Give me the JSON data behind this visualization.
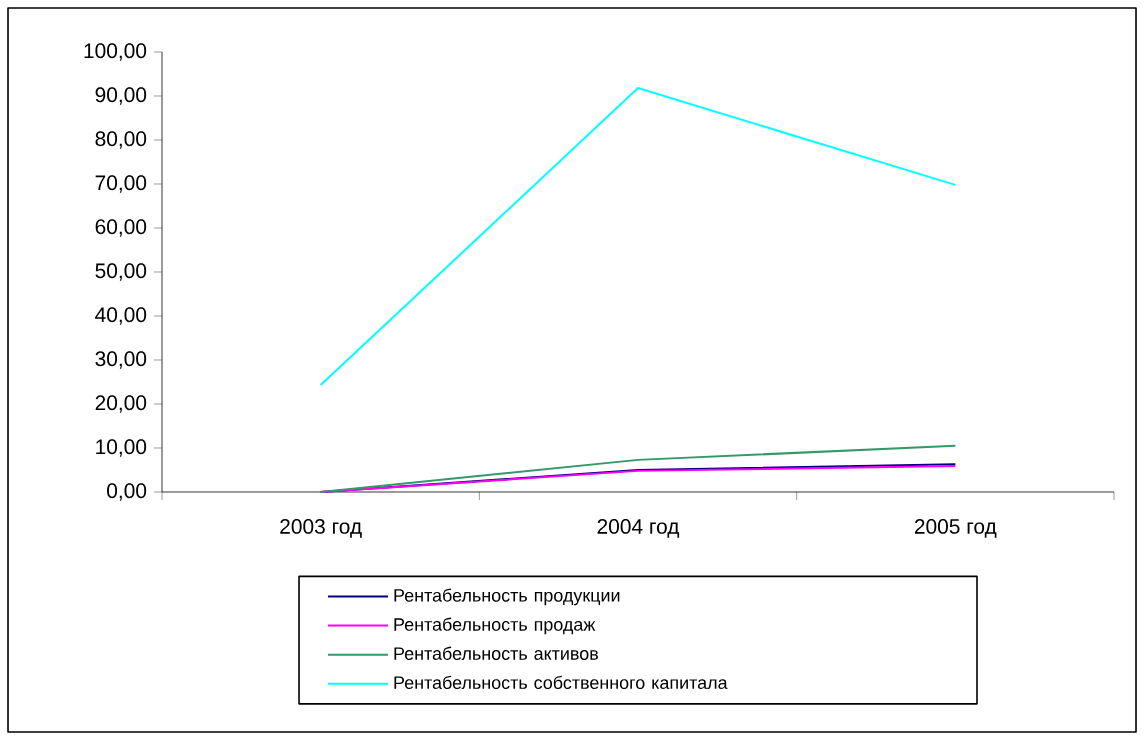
{
  "chart_data": {
    "type": "line",
    "categories": [
      "2003 год",
      "2004 год",
      "2005 год"
    ],
    "series": [
      {
        "name": "Рентабельность продукции",
        "color": "#000080",
        "values": [
          0,
          5.0,
          6.3
        ]
      },
      {
        "name": "Рентабельность продаж",
        "color": "#ff00ff",
        "values": [
          0,
          4.8,
          5.9
        ]
      },
      {
        "name": "Рентабельность активов",
        "color": "#339966",
        "values": [
          0,
          7.3,
          10.5
        ]
      },
      {
        "name": "Рентабельность собственного капитала",
        "color": "#00ffff",
        "values": [
          24.3,
          91.8,
          69.8
        ]
      }
    ],
    "ylim": [
      0,
      100
    ],
    "yticks": [
      {
        "value": 0,
        "label": "0,00"
      },
      {
        "value": 10,
        "label": "10,00"
      },
      {
        "value": 20,
        "label": "20,00"
      },
      {
        "value": 30,
        "label": "30,00"
      },
      {
        "value": 40,
        "label": "40,00"
      },
      {
        "value": 50,
        "label": "50,00"
      },
      {
        "value": 60,
        "label": "60,00"
      },
      {
        "value": 70,
        "label": "70,00"
      },
      {
        "value": 80,
        "label": "80,00"
      },
      {
        "value": 90,
        "label": "90,00"
      },
      {
        "value": 100,
        "label": "100,00"
      }
    ],
    "grid": false,
    "legend": "bottom",
    "marker": "none",
    "line_style": "solid"
  }
}
